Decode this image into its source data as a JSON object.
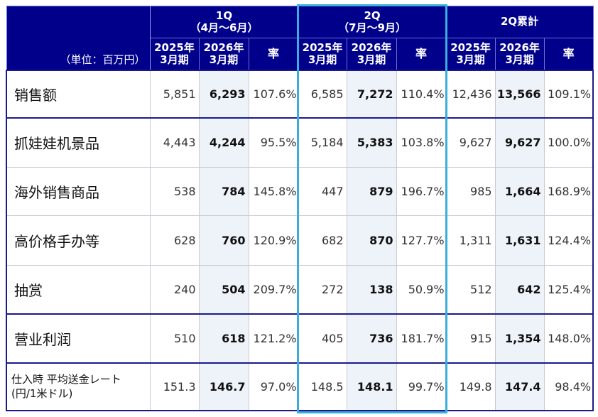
{
  "header": {
    "unit_label": "（単位：百万円）",
    "groups": [
      {
        "title": "1Q",
        "subtitle": "（4月～6月）"
      },
      {
        "title": "2Q",
        "subtitle": "（7月～9月）"
      },
      {
        "title": "2Q累計",
        "subtitle": ""
      }
    ],
    "sub_columns": {
      "prev_line1": "2025年",
      "prev_line2": "3月期",
      "curr_line1": "2026年",
      "curr_line2": "3月期",
      "rate": "率"
    }
  },
  "highlight_color": "#3aaedc",
  "header_color": "#00008b",
  "rows": [
    {
      "label": "销售额",
      "line2": "",
      "values": [
        "5,851",
        "6,293",
        "107.6%",
        "6,585",
        "7,272",
        "110.4%",
        "12,436",
        "13,566",
        "109.1%"
      ]
    },
    {
      "label": "抓娃娃机景品",
      "line2": "",
      "values": [
        "4,443",
        "4,244",
        "95.5%",
        "5,184",
        "5,383",
        "103.8%",
        "9,627",
        "9,627",
        "100.0%"
      ]
    },
    {
      "label": "海外销售商品",
      "line2": "",
      "values": [
        "538",
        "784",
        "145.8%",
        "447",
        "879",
        "196.7%",
        "985",
        "1,664",
        "168.9%"
      ]
    },
    {
      "label": "高价格手办等",
      "line2": "",
      "values": [
        "628",
        "760",
        "120.9%",
        "682",
        "870",
        "127.7%",
        "1,311",
        "1,631",
        "124.4%"
      ]
    },
    {
      "label": "抽赏",
      "line2": "",
      "values": [
        "240",
        "504",
        "209.7%",
        "272",
        "138",
        "50.9%",
        "512",
        "642",
        "125.4%"
      ]
    },
    {
      "label": "营业利润",
      "line2": "",
      "values": [
        "510",
        "618",
        "121.2%",
        "405",
        "736",
        "181.7%",
        "915",
        "1,354",
        "148.0%"
      ]
    },
    {
      "label": "仕入時 平均送金レート",
      "line2": "(円/1米ドル)",
      "values": [
        "151.3",
        "146.7",
        "97.0%",
        "148.5",
        "148.1",
        "99.7%",
        "149.8",
        "147.4",
        "98.4%"
      ]
    }
  ]
}
